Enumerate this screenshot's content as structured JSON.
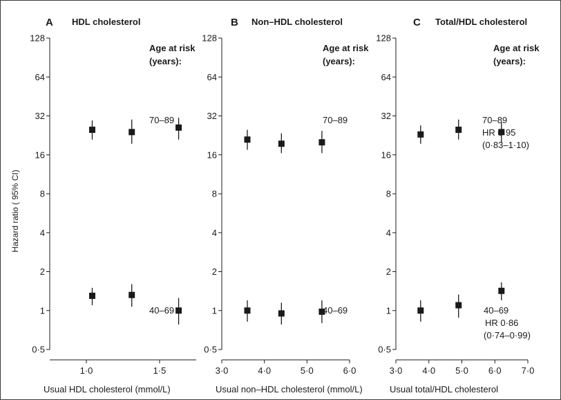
{
  "figure": {
    "ylabel": "Hazard ratio ( 95% CI)",
    "y_tick_labels": [
      "0·5",
      "1",
      "2",
      "4",
      "8",
      "16",
      "32",
      "64",
      "128"
    ]
  },
  "chart_data": [
    {
      "type": "scatter",
      "panel_letter": "A",
      "title": "HDL cholesterol",
      "xlabel": "Usual HDL cholesterol (mmol/L)",
      "ylabel": "Hazard ratio ( 95% CI)",
      "y_scale": "log2",
      "ylim": [
        0.5,
        128
      ],
      "xlim": [
        0.75,
        1.75
      ],
      "x_ticks": [
        {
          "value": 1.0,
          "label": "1·0"
        },
        {
          "value": 1.5,
          "label": "1·5"
        }
      ],
      "legend_title": [
        "Age at risk",
        "(years):"
      ],
      "grid": false,
      "series": [
        {
          "name": "70–89",
          "annotation": [
            "70–89"
          ],
          "points": [
            {
              "x": 1.04,
              "y": 25,
              "lo": 21,
              "hi": 29.5
            },
            {
              "x": 1.31,
              "y": 24,
              "lo": 19.5,
              "hi": 30
            },
            {
              "x": 1.63,
              "y": 26,
              "lo": 21,
              "hi": 31
            }
          ]
        },
        {
          "name": "40–69",
          "annotation": [
            "40–69"
          ],
          "points": [
            {
              "x": 1.04,
              "y": 1.3,
              "lo": 1.1,
              "hi": 1.5
            },
            {
              "x": 1.31,
              "y": 1.32,
              "lo": 1.07,
              "hi": 1.6
            },
            {
              "x": 1.63,
              "y": 1.0,
              "lo": 0.78,
              "hi": 1.25
            }
          ]
        }
      ]
    },
    {
      "type": "scatter",
      "panel_letter": "B",
      "title": "Non–HDL cholesterol",
      "xlabel": "Usual non–HDL cholesterol (mmol/L)",
      "ylabel": "Hazard ratio ( 95% CI)",
      "y_scale": "log2",
      "ylim": [
        0.5,
        128
      ],
      "xlim": [
        3.0,
        6.0
      ],
      "x_ticks": [
        {
          "value": 3.0,
          "label": "3·0"
        },
        {
          "value": 4.0,
          "label": "4·0"
        },
        {
          "value": 5.0,
          "label": "5·0"
        },
        {
          "value": 6.0,
          "label": "6·0"
        }
      ],
      "legend_title": [
        "Age at risk",
        "(years):"
      ],
      "grid": false,
      "series": [
        {
          "name": "70–89",
          "annotation": [
            "70–89"
          ],
          "points": [
            {
              "x": 3.6,
              "y": 21,
              "lo": 17.5,
              "hi": 25
            },
            {
              "x": 4.4,
              "y": 19.5,
              "lo": 16.5,
              "hi": 23.5
            },
            {
              "x": 5.35,
              "y": 20,
              "lo": 16.5,
              "hi": 24.5
            }
          ]
        },
        {
          "name": "40–69",
          "annotation": [
            "40–69"
          ],
          "points": [
            {
              "x": 3.6,
              "y": 1.0,
              "lo": 0.82,
              "hi": 1.2
            },
            {
              "x": 4.4,
              "y": 0.95,
              "lo": 0.78,
              "hi": 1.15
            },
            {
              "x": 5.35,
              "y": 0.98,
              "lo": 0.8,
              "hi": 1.2
            }
          ]
        }
      ]
    },
    {
      "type": "scatter",
      "panel_letter": "C",
      "title": "Total/HDL cholesterol",
      "xlabel": "Usual total/HDL cholesterol",
      "ylabel": "Hazard ratio ( 95% CI)",
      "y_scale": "log2",
      "ylim": [
        0.5,
        128
      ],
      "xlim": [
        3.0,
        7.0
      ],
      "x_ticks": [
        {
          "value": 3.0,
          "label": "3·0"
        },
        {
          "value": 4.0,
          "label": "4·0"
        },
        {
          "value": 5.0,
          "label": "5·0"
        },
        {
          "value": 6.0,
          "label": "6·0"
        },
        {
          "value": 7.0,
          "label": "7·0"
        }
      ],
      "legend_title": [
        "Age at risk",
        "(years):"
      ],
      "grid": false,
      "series": [
        {
          "name": "70–89",
          "annotation": [
            "70–89",
            "HR 0·95",
            "(0·83–1·10)"
          ],
          "points": [
            {
              "x": 3.75,
              "y": 23,
              "lo": 19.5,
              "hi": 27
            },
            {
              "x": 4.9,
              "y": 25,
              "lo": 21,
              "hi": 30
            },
            {
              "x": 6.2,
              "y": 24,
              "lo": 20,
              "hi": 28.5
            }
          ]
        },
        {
          "name": "40–69",
          "annotation": [
            "40–69",
            "HR 0·86",
            "(0·74–0·99)"
          ],
          "points": [
            {
              "x": 3.75,
              "y": 1.0,
              "lo": 0.82,
              "hi": 1.2
            },
            {
              "x": 4.9,
              "y": 1.1,
              "lo": 0.88,
              "hi": 1.33
            },
            {
              "x": 6.2,
              "y": 1.42,
              "lo": 1.2,
              "hi": 1.65
            }
          ]
        }
      ]
    }
  ]
}
